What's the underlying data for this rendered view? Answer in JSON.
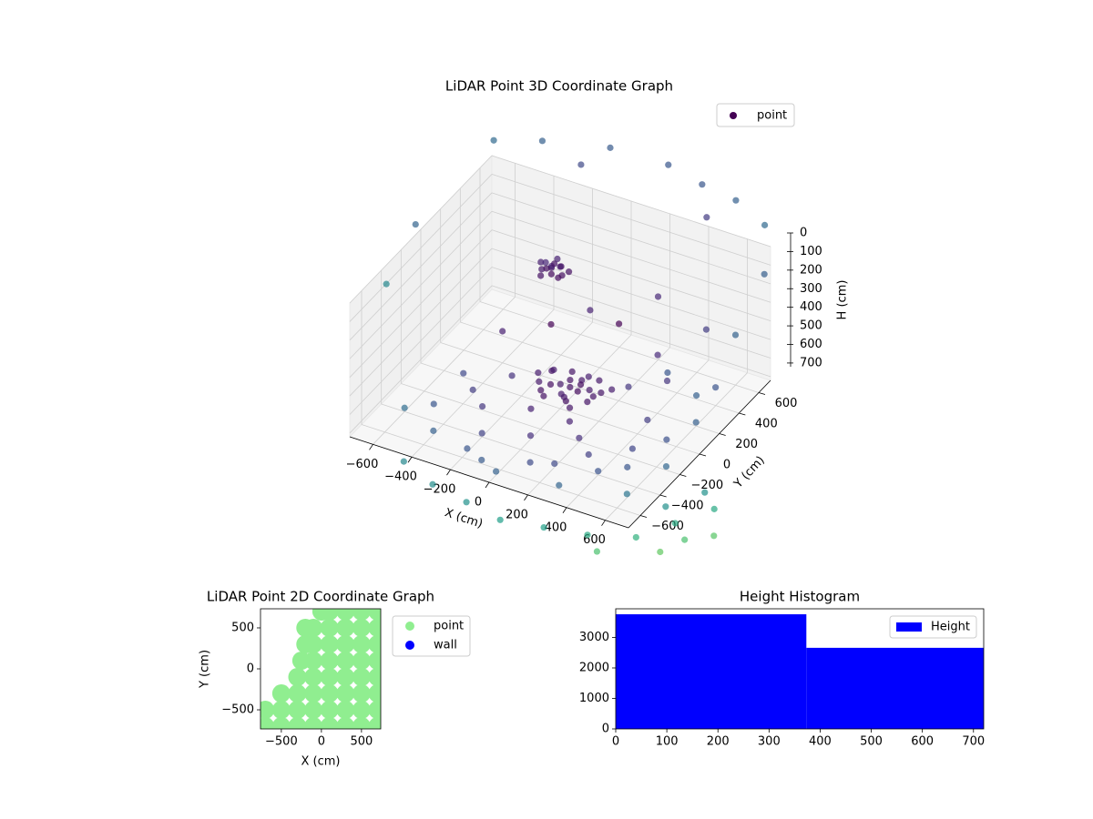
{
  "chart_data": [
    {
      "type": "scatter3d",
      "title": "LiDAR Point 3D Coordinate Graph",
      "x_label": "X (cm)",
      "y_label": "Y (cm)",
      "z_label": "H (cm)",
      "xlim": [
        -720,
        720
      ],
      "ylim": [
        -720,
        720
      ],
      "zlim": [
        720,
        0
      ],
      "xticks": [
        {
          "value": -600,
          "label": "−600"
        },
        {
          "value": -400,
          "label": "−400"
        },
        {
          "value": -200,
          "label": "−200"
        },
        0,
        200,
        400,
        600
      ],
      "yticks": [
        {
          "value": -600,
          "label": "−600"
        },
        {
          "value": -400,
          "label": "−400"
        },
        {
          "value": -200,
          "label": "−200"
        },
        0,
        200,
        400,
        600
      ],
      "zticks": [
        0,
        100,
        200,
        300,
        400,
        500,
        600,
        700
      ],
      "grid": true,
      "legend": "upper right",
      "colormap": "viridis",
      "series": [
        {
          "name": "point",
          "color": "#440154",
          "x": [
            -300,
            -340,
            -260,
            -320,
            -280,
            -360,
            -240,
            -300,
            -330,
            -270,
            -310,
            -350,
            -250,
            -290,
            -220,
            0,
            -80,
            80,
            -120,
            120,
            40,
            -40,
            -150,
            150,
            60,
            -60,
            20,
            -100,
            100,
            0,
            -20,
            70,
            -130,
            130,
            30,
            -70,
            180,
            -180,
            50,
            -30,
            -600,
            -500,
            -400,
            -300,
            -200,
            -100,
            0,
            100,
            200,
            300,
            400,
            500,
            600,
            -500,
            -300,
            200,
            400,
            500,
            600,
            300,
            -400,
            -100,
            100,
            300,
            -200,
            0,
            200,
            450,
            650,
            550,
            -200,
            100,
            300,
            500,
            -100,
            400,
            600,
            200,
            -400,
            650,
            -200,
            0,
            200,
            400,
            600,
            800,
            900,
            1000,
            800,
            1000,
            900,
            700,
            -400,
            1100,
            950,
            -700,
            -500,
            -200,
            100,
            300,
            500,
            700,
            -300,
            400,
            800,
            -900,
            -1000
          ],
          "y": [
            500,
            480,
            520,
            540,
            460,
            510,
            490,
            560,
            450,
            530,
            470,
            540,
            470,
            510,
            520,
            100,
            60,
            140,
            150,
            40,
            -20,
            200,
            80,
            120,
            60,
            120,
            180,
            0,
            200,
            40,
            140,
            -40,
            190,
            80,
            230,
            -30,
            170,
            130,
            110,
            70,
            -400,
            -300,
            -500,
            -200,
            -400,
            -600,
            -300,
            -500,
            -200,
            -600,
            -400,
            -300,
            -500,
            0,
            100,
            300,
            100,
            400,
            200,
            500,
            -100,
            -100,
            -100,
            -300,
            -550,
            -650,
            -450,
            -150,
            -200,
            0,
            300,
            400,
            400,
            500,
            500,
            300,
            600,
            600,
            200,
            300,
            -900,
            -950,
            -1000,
            -950,
            -900,
            -800,
            -600,
            -700,
            -500,
            -400,
            -300,
            -1000,
            -800,
            -600,
            -850,
            700,
            800,
            900,
            900,
            850,
            800,
            700,
            800,
            700,
            500,
            300,
            200
          ],
          "z": [
            340,
            350,
            330,
            360,
            345,
            335,
            355,
            325,
            365,
            340,
            330,
            350,
            360,
            320,
            345,
            660,
            650,
            670,
            640,
            665,
            655,
            645,
            670,
            650,
            640,
            675,
            660,
            655,
            645,
            680,
            650,
            670,
            660,
            655,
            665,
            660,
            650,
            660,
            635,
            690,
            700,
            700,
            700,
            700,
            700,
            700,
            700,
            700,
            700,
            700,
            700,
            700,
            700,
            700,
            700,
            700,
            700,
            700,
            700,
            700,
            700,
            700,
            700,
            700,
            700,
            700,
            700,
            700,
            700,
            700,
            500,
            450,
            550,
            400,
            500,
            600,
            450,
            380,
            550,
            550,
            700,
            700,
            700,
            700,
            700,
            700,
            700,
            700,
            700,
            700,
            700,
            700,
            700,
            700,
            700,
            -100,
            -110,
            -120,
            -130,
            -120,
            -130,
            -120,
            -50,
            -60,
            0,
            200,
            500
          ]
        }
      ]
    },
    {
      "type": "scatter",
      "title": "LiDAR Point 2D Coordinate Graph",
      "x_label": "X (cm)",
      "y_label": "Y (cm)",
      "xlim": [
        -760,
        740
      ],
      "ylim": [
        -733,
        733
      ],
      "xticks": [
        {
          "value": -500,
          "label": "−500"
        },
        0,
        500
      ],
      "yticks": [
        {
          "value": -500,
          "label": "−500"
        },
        0,
        500
      ],
      "legend": "outside right",
      "series": [
        {
          "name": "point",
          "color": "#90ee90",
          "x": [
            0,
            100,
            300,
            500,
            700,
            -200,
            -100,
            100,
            300,
            500,
            700,
            -200,
            -100,
            100,
            300,
            500,
            700,
            -250,
            -100,
            100,
            300,
            500,
            700,
            -300,
            -100,
            100,
            300,
            500,
            700,
            -500,
            -300,
            -100,
            100,
            300,
            500,
            700,
            -700,
            -500,
            -300,
            -100,
            100,
            300,
            500,
            700,
            -700,
            -500,
            -300,
            -100,
            100,
            300,
            500,
            700
          ],
          "y": [
            700,
            700,
            700,
            700,
            700,
            500,
            500,
            500,
            500,
            500,
            500,
            300,
            300,
            300,
            300,
            300,
            300,
            100,
            100,
            100,
            100,
            100,
            100,
            -100,
            -100,
            -100,
            -100,
            -100,
            -100,
            -300,
            -300,
            -300,
            -300,
            -300,
            -300,
            -300,
            -500,
            -500,
            -500,
            -500,
            -500,
            -500,
            -500,
            -500,
            -700,
            -700,
            -700,
            -700,
            -700,
            -700,
            -700,
            -700
          ]
        },
        {
          "name": "wall",
          "color": "#0000ff",
          "x": [],
          "y": []
        }
      ]
    },
    {
      "type": "histogram",
      "title": "Height Histogram",
      "bins": [
        0,
        373,
        720
      ],
      "xlim": [
        0,
        720
      ],
      "ylim": [
        0,
        3940
      ],
      "xticks": [
        0,
        100,
        200,
        300,
        400,
        500,
        600,
        700
      ],
      "yticks": [
        0,
        1000,
        2000,
        3000
      ],
      "legend": "upper right",
      "series": [
        {
          "name": "Height",
          "color": "#0000ff",
          "values": [
            3760,
            2660
          ]
        }
      ]
    }
  ]
}
